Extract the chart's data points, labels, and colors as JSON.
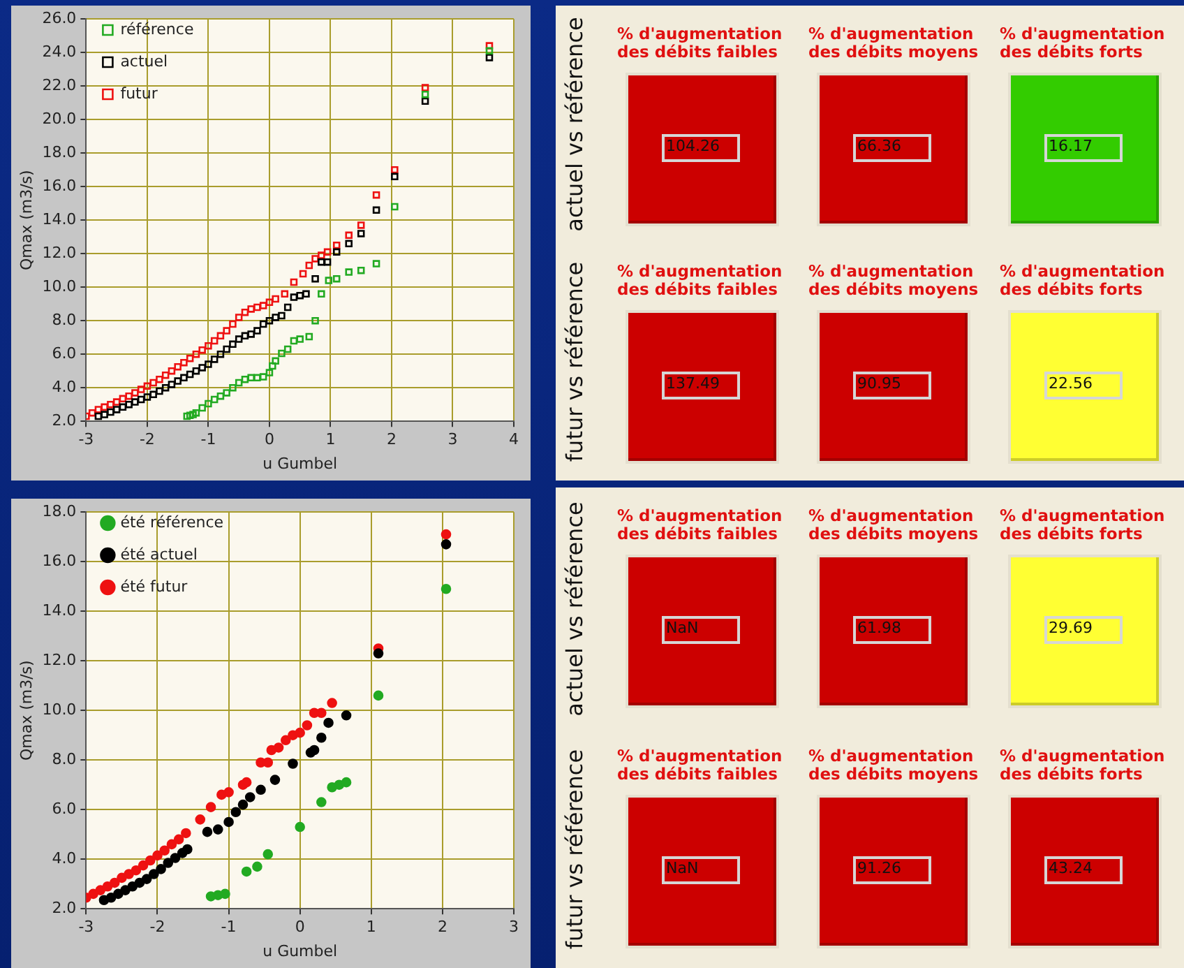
{
  "chart_data": [
    {
      "type": "scatter",
      "xlabel": "u Gumbel",
      "ylabel": "Qmax (m3/s)",
      "xlim": [
        -3,
        4
      ],
      "xticks": [
        -3,
        -2,
        -1,
        0,
        1,
        2,
        3,
        4
      ],
      "ylim": [
        2,
        26
      ],
      "yticks": [
        {
          "value": 2,
          "label": "2.0"
        },
        {
          "value": 4,
          "label": "4.0"
        },
        {
          "value": 6,
          "label": "6.0"
        },
        {
          "value": 8,
          "label": "8.0"
        },
        {
          "value": 10,
          "label": "10.0"
        },
        {
          "value": 12,
          "label": "12.0"
        },
        {
          "value": 14,
          "label": "14.0"
        },
        {
          "value": 16,
          "label": "16.0"
        },
        {
          "value": 18,
          "label": "18.0"
        },
        {
          "value": 20,
          "label": "20.0"
        },
        {
          "value": 22,
          "label": "22.0"
        },
        {
          "value": 24,
          "label": "24.0"
        },
        {
          "value": 26,
          "label": "26.0"
        }
      ],
      "grid": true,
      "legend": "top left",
      "marker": "square",
      "series": [
        {
          "name": "référence",
          "color": "#22aa22",
          "x": [
            -1.35,
            -1.3,
            -1.25,
            -1.2,
            -1.1,
            -1,
            -0.9,
            -0.8,
            -0.7,
            -0.6,
            -0.5,
            -0.4,
            -0.3,
            -0.2,
            -0.1,
            0,
            0.05,
            0.1,
            0.2,
            0.3,
            0.4,
            0.5,
            0.65,
            0.75,
            0.85,
            0.97,
            1.1,
            1.3,
            1.5,
            1.75,
            2.05,
            2.55,
            3.6
          ],
          "values": [
            2.3,
            2.35,
            2.4,
            2.5,
            2.8,
            3.05,
            3.3,
            3.5,
            3.7,
            4,
            4.3,
            4.5,
            4.6,
            4.6,
            4.65,
            4.9,
            5.3,
            5.6,
            6.05,
            6.3,
            6.8,
            6.9,
            7.05,
            8,
            9.6,
            10.4,
            10.5,
            10.9,
            11,
            11.4,
            14.8,
            21.5,
            24.1
          ]
        },
        {
          "name": "actuel",
          "color": "#000000",
          "x": [
            -2.8,
            -2.7,
            -2.6,
            -2.5,
            -2.4,
            -2.3,
            -2.2,
            -2.1,
            -2,
            -1.9,
            -1.8,
            -1.7,
            -1.6,
            -1.5,
            -1.4,
            -1.3,
            -1.2,
            -1.1,
            -1,
            -0.9,
            -0.8,
            -0.7,
            -0.6,
            -0.5,
            -0.4,
            -0.3,
            -0.2,
            -0.1,
            0,
            0.1,
            0.2,
            0.3,
            0.4,
            0.5,
            0.6,
            0.75,
            0.85,
            0.95,
            1.1,
            1.3,
            1.5,
            1.75,
            2.05,
            2.55,
            3.6
          ],
          "values": [
            2.3,
            2.4,
            2.55,
            2.7,
            2.85,
            3,
            3.15,
            3.3,
            3.45,
            3.6,
            3.8,
            4,
            4.2,
            4.4,
            4.6,
            4.8,
            5,
            5.2,
            5.4,
            5.7,
            6,
            6.3,
            6.6,
            6.9,
            7.1,
            7.2,
            7.4,
            7.8,
            8,
            8.2,
            8.3,
            8.8,
            9.4,
            9.5,
            9.6,
            10.5,
            11.5,
            11.5,
            12.1,
            12.6,
            13.2,
            14.6,
            16.6,
            21.1,
            23.7
          ]
        },
        {
          "name": "futur",
          "color": "#ee1111",
          "x": [
            -3,
            -2.9,
            -2.8,
            -2.7,
            -2.6,
            -2.5,
            -2.4,
            -2.3,
            -2.2,
            -2.1,
            -2,
            -1.9,
            -1.8,
            -1.7,
            -1.6,
            -1.5,
            -1.4,
            -1.3,
            -1.2,
            -1.1,
            -1,
            -0.9,
            -0.8,
            -0.7,
            -0.6,
            -0.5,
            -0.4,
            -0.3,
            -0.2,
            -0.1,
            0,
            0.1,
            0.25,
            0.4,
            0.55,
            0.65,
            0.75,
            0.85,
            0.95,
            1.1,
            1.3,
            1.5,
            1.75,
            2.05,
            2.55,
            3.6
          ],
          "values": [
            2.3,
            2.5,
            2.7,
            2.85,
            3,
            3.15,
            3.35,
            3.5,
            3.7,
            3.9,
            4.1,
            4.3,
            4.5,
            4.75,
            5,
            5.25,
            5.5,
            5.75,
            6,
            6.25,
            6.5,
            6.8,
            7.1,
            7.4,
            7.8,
            8.2,
            8.5,
            8.7,
            8.8,
            8.9,
            9.1,
            9.3,
            9.6,
            10.3,
            10.8,
            11.3,
            11.7,
            11.9,
            12.1,
            12.5,
            13.1,
            13.7,
            15.5,
            17,
            21.9,
            24.4
          ]
        }
      ]
    },
    {
      "type": "other",
      "data_labels": true,
      "annotations": [
        "actuel vs référence",
        "futur vs référence"
      ],
      "categories": [
        "% d'augmentation des débits faibles",
        "% d'augmentation des débits moyens",
        "% d'augmentation des débits forts"
      ],
      "series": [
        {
          "values": [
            104.26,
            66.36,
            16.17
          ],
          "colors": [
            "#cc0000",
            "#cc0000",
            "#33cc00"
          ]
        },
        {
          "values": [
            137.49,
            90.95,
            22.56
          ],
          "colors": [
            "#cc0000",
            "#cc0000",
            "#ffff33"
          ]
        }
      ]
    },
    {
      "type": "scatter",
      "xlabel": "u Gumbel",
      "ylabel": "Qmax (m3/s)",
      "xlim": [
        -3,
        3
      ],
      "xticks": [
        -3,
        -2,
        -1,
        0,
        1,
        2,
        3
      ],
      "ylim": [
        2,
        18
      ],
      "yticks": [
        {
          "value": 2,
          "label": "2.0"
        },
        {
          "value": 4,
          "label": "4.0"
        },
        {
          "value": 6,
          "label": "6.0"
        },
        {
          "value": 8,
          "label": "8.0"
        },
        {
          "value": 10,
          "label": "10.0"
        },
        {
          "value": 12,
          "label": "12.0"
        },
        {
          "value": 14,
          "label": "14.0"
        },
        {
          "value": 16,
          "label": "16.0"
        },
        {
          "value": 18,
          "label": "18.0"
        }
      ],
      "grid": true,
      "legend": "top left",
      "marker": "circle",
      "series": [
        {
          "name": "été référence",
          "color": "#22aa22",
          "x": [
            -1.25,
            -1.15,
            -1.05,
            -0.75,
            -0.6,
            -0.45,
            0,
            0.3,
            0.45,
            0.55,
            0.65,
            1.1,
            2.05
          ],
          "values": [
            2.5,
            2.55,
            2.6,
            3.5,
            3.7,
            4.2,
            5.3,
            6.3,
            6.9,
            7,
            7.1,
            10.6,
            14.9
          ]
        },
        {
          "name": "été actuel",
          "color": "#000000",
          "x": [
            -2.75,
            -2.65,
            -2.55,
            -2.45,
            -2.35,
            -2.25,
            -2.15,
            -2.05,
            -1.95,
            -1.85,
            -1.75,
            -1.65,
            -1.58,
            -1.3,
            -1.15,
            -1,
            -0.9,
            -0.8,
            -0.7,
            -0.55,
            -0.35,
            -0.1,
            0.15,
            0.2,
            0.3,
            0.4,
            0.65,
            1.1,
            2.05
          ],
          "values": [
            2.35,
            2.45,
            2.6,
            2.75,
            2.9,
            3.05,
            3.2,
            3.4,
            3.6,
            3.85,
            4.05,
            4.25,
            4.4,
            5.1,
            5.2,
            5.5,
            5.9,
            6.2,
            6.5,
            6.8,
            7.2,
            7.85,
            8.3,
            8.4,
            8.9,
            9.5,
            9.8,
            12.3,
            16.7
          ]
        },
        {
          "name": "été futur",
          "color": "#ee1111",
          "x": [
            -3,
            -2.9,
            -2.8,
            -2.7,
            -2.6,
            -2.5,
            -2.4,
            -2.3,
            -2.2,
            -2.1,
            -2,
            -1.9,
            -1.8,
            -1.7,
            -1.6,
            -1.4,
            -1.25,
            -1.1,
            -1,
            -0.8,
            -0.75,
            -0.55,
            -0.45,
            -0.4,
            -0.3,
            -0.2,
            -0.1,
            0,
            0.1,
            0.2,
            0.3,
            0.45,
            1.1,
            2.05
          ],
          "values": [
            2.45,
            2.6,
            2.75,
            2.9,
            3.05,
            3.25,
            3.4,
            3.55,
            3.75,
            3.95,
            4.15,
            4.35,
            4.6,
            4.8,
            5.05,
            5.6,
            6.1,
            6.6,
            6.7,
            7,
            7.1,
            7.9,
            7.9,
            8.4,
            8.5,
            8.8,
            9,
            9.1,
            9.4,
            9.9,
            9.9,
            10.3,
            12.5,
            17.1
          ]
        }
      ]
    },
    {
      "type": "other",
      "data_labels": true,
      "annotations": [
        "actuel vs référence",
        "futur vs référence"
      ],
      "categories": [
        "% d'augmentation des débits faibles",
        "% d'augmentation des débits moyens",
        "% d'augmentation des débits forts"
      ],
      "series": [
        {
          "values": [
            null,
            61.98,
            29.69
          ],
          "value_labels": [
            "NaN",
            "61.98",
            "29.69"
          ],
          "colors": [
            "#cc0000",
            "#cc0000",
            "#ffff33"
          ]
        },
        {
          "values": [
            null,
            91.26,
            43.24
          ],
          "value_labels": [
            "NaN",
            "91.26",
            "43.24"
          ],
          "colors": [
            "#cc0000",
            "#cc0000",
            "#cc0000"
          ]
        }
      ]
    }
  ]
}
